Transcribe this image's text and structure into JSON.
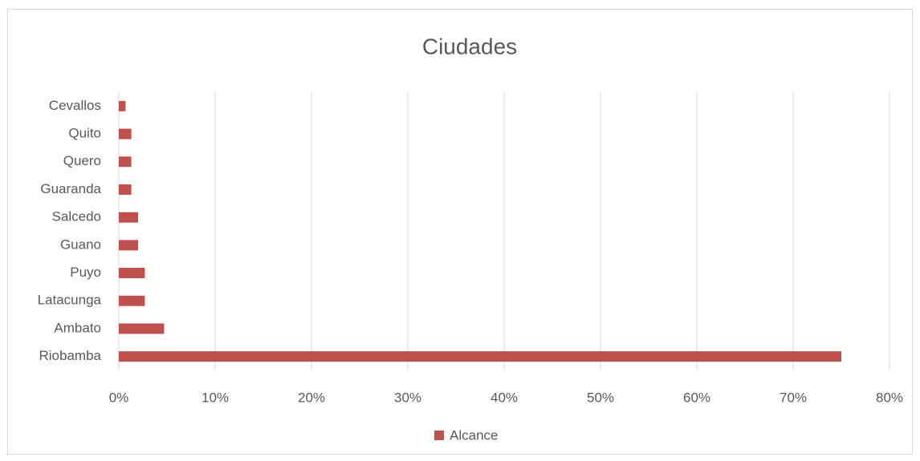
{
  "chart_data": {
    "type": "barh",
    "title": "Ciudades",
    "categories": [
      "Riobamba",
      "Ambato",
      "Latacunga",
      "Puyo",
      "Guano",
      "Salcedo",
      "Guaranda",
      "Quero",
      "Quito",
      "Cevallos"
    ],
    "series": [
      {
        "name": "Alcance",
        "color": "#c0504d",
        "values": [
          75,
          4.7,
          2.7,
          2.7,
          2.0,
          2.0,
          1.3,
          1.3,
          1.3,
          0.7
        ]
      }
    ],
    "xlim": [
      0,
      80
    ],
    "xticks": [
      {
        "value": 0,
        "label": "0%"
      },
      {
        "value": 10,
        "label": "10%"
      },
      {
        "value": 20,
        "label": "20%"
      },
      {
        "value": 30,
        "label": "30%"
      },
      {
        "value": 40,
        "label": "40%"
      },
      {
        "value": 50,
        "label": "50%"
      },
      {
        "value": 60,
        "label": "60%"
      },
      {
        "value": 70,
        "label": "70%"
      },
      {
        "value": 80,
        "label": "80%"
      }
    ],
    "grid": true,
    "legend": "bottom"
  }
}
